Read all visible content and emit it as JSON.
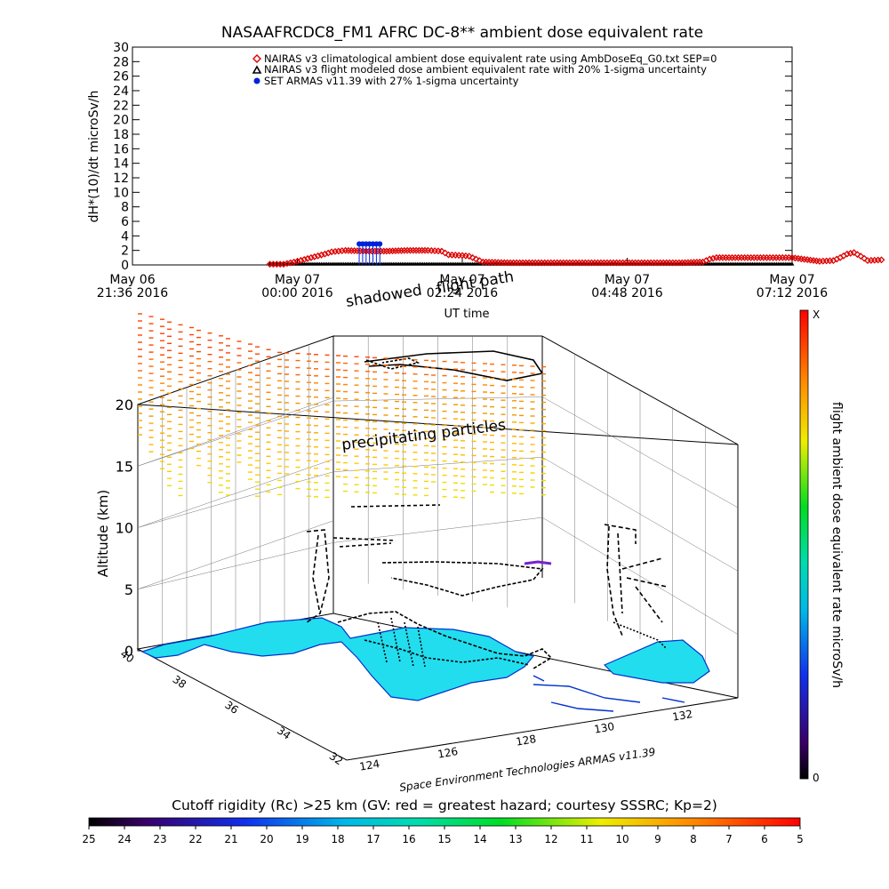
{
  "title": "NASAAFRCDC8_FM1 AFRC DC-8** ambient dose equivalent rate",
  "colors": {
    "nairas_clim": "#dd0000",
    "nairas_model": "#000000",
    "armas": "#0022dd",
    "land": "#22ddee",
    "coast": "#0033cc",
    "track": "#000000"
  },
  "chart_data": [
    {
      "type": "scatter",
      "title": "NASAAFRCDC8_FM1 AFRC DC-8** ambient dose equivalent rate",
      "xlabel": "UT time",
      "ylabel": "dH*(10)/dt microSv/h",
      "ylim": [
        0,
        30
      ],
      "yticks": [
        "0",
        "2",
        "4",
        "6",
        "8",
        "10",
        "12",
        "14",
        "16",
        "18",
        "20",
        "22",
        "24",
        "26",
        "28",
        "30"
      ],
      "xlim_hours_from_start": [
        0,
        9.6
      ],
      "xticks": [
        {
          "line1": "May 06",
          "line2": "21:36 2016"
        },
        {
          "line1": "May 07",
          "line2": "00:00 2016"
        },
        {
          "line1": "May 07",
          "line2": "02:24 2016"
        },
        {
          "line1": "May 07",
          "line2": "04:48 2016"
        },
        {
          "line1": "May 07",
          "line2": "07:12 2016"
        }
      ],
      "grid": false,
      "legend_position": "top-right",
      "legend": [
        {
          "marker": "diamond",
          "label": "NAIRAS v3 climatological ambient dose equivalent rate using AmbDoseEq_G0.txt SEP=0"
        },
        {
          "marker": "triangle",
          "label": "NAIRAS v3 flight modeled dose ambient equivalent rate with 20% 1-sigma uncertainty"
        },
        {
          "marker": "filled-circle",
          "label": "SET ARMAS v11.39 with 27% 1-sigma uncertainty"
        }
      ],
      "series": [
        {
          "name": "NAIRAS v3 climatological ambient dose equivalent rate using AmbDoseEq_G0.txt SEP=0",
          "points": [
            [
              2.0,
              0.1
            ],
            [
              2.2,
              0.1
            ],
            [
              2.4,
              0.5
            ],
            [
              2.6,
              1.0
            ],
            [
              2.8,
              1.5
            ],
            [
              2.9,
              1.8
            ],
            [
              3.1,
              2.0
            ],
            [
              3.4,
              1.9
            ],
            [
              3.7,
              1.9
            ],
            [
              4.0,
              2.0
            ],
            [
              4.3,
              2.0
            ],
            [
              4.5,
              1.9
            ],
            [
              4.6,
              1.4
            ],
            [
              4.8,
              1.3
            ],
            [
              4.9,
              1.2
            ],
            [
              5.1,
              0.4
            ],
            [
              5.5,
              0.3
            ],
            [
              6.0,
              0.3
            ],
            [
              7.0,
              0.3
            ],
            [
              8.0,
              0.3
            ],
            [
              8.3,
              0.4
            ],
            [
              8.4,
              0.8
            ],
            [
              8.5,
              1.0
            ],
            [
              9.0,
              1.0
            ],
            [
              9.6,
              1.0
            ],
            [
              10.0,
              0.5
            ],
            [
              10.2,
              0.6
            ],
            [
              10.3,
              1.0
            ],
            [
              10.4,
              1.5
            ],
            [
              10.5,
              1.7
            ],
            [
              10.6,
              1.2
            ],
            [
              10.7,
              0.6
            ],
            [
              10.9,
              0.7
            ]
          ]
        },
        {
          "name": "NAIRAS v3 flight modeled dose ambient equivalent rate with 20% 1-sigma uncertainty",
          "points": [
            [
              2.0,
              0.05
            ],
            [
              4.0,
              0.05
            ],
            [
              6.0,
              0.05
            ],
            [
              8.0,
              0.05
            ],
            [
              9.6,
              0.05
            ]
          ]
        },
        {
          "name": "SET ARMAS v11.39 with 27% 1-sigma uncertainty",
          "points": [
            [
              3.3,
              2.9
            ],
            [
              3.35,
              2.9
            ],
            [
              3.4,
              2.9
            ],
            [
              3.45,
              2.9
            ],
            [
              3.5,
              2.9
            ],
            [
              3.55,
              2.9
            ],
            [
              3.6,
              2.9
            ]
          ]
        }
      ]
    },
    {
      "type": "scatter",
      "title": "flight path",
      "zlabel": "Altitude (km)",
      "zlim": [
        0,
        20
      ],
      "zticks": [
        "0",
        "5",
        "10",
        "15",
        "20"
      ],
      "lat_ticks": [
        "40",
        "38",
        "36",
        "34",
        "32"
      ],
      "lon_ticks": [
        "124",
        "126",
        "128",
        "130",
        "132"
      ],
      "annotations": [
        "shadowed",
        "flight path",
        "precipitating particles",
        "Space Environment Technologies ARMAS v11.39"
      ]
    },
    {
      "type": "heatmap",
      "colorbar": "vertical",
      "label": "flight ambient dose equivalent rate microSv/h",
      "top_label": "X",
      "bottom_label": "0"
    },
    {
      "type": "heatmap",
      "colorbar": "horizontal",
      "title": "Cutoff rigidity (Rc) >25 km (GV: red = greatest hazard; courtesy SSSRC; Kp=2)",
      "ticks": [
        "25",
        "24",
        "23",
        "22",
        "21",
        "20",
        "19",
        "18",
        "17",
        "16",
        "15",
        "14",
        "13",
        "12",
        "11",
        "10",
        "9",
        "8",
        "7",
        "6",
        "5"
      ]
    }
  ]
}
